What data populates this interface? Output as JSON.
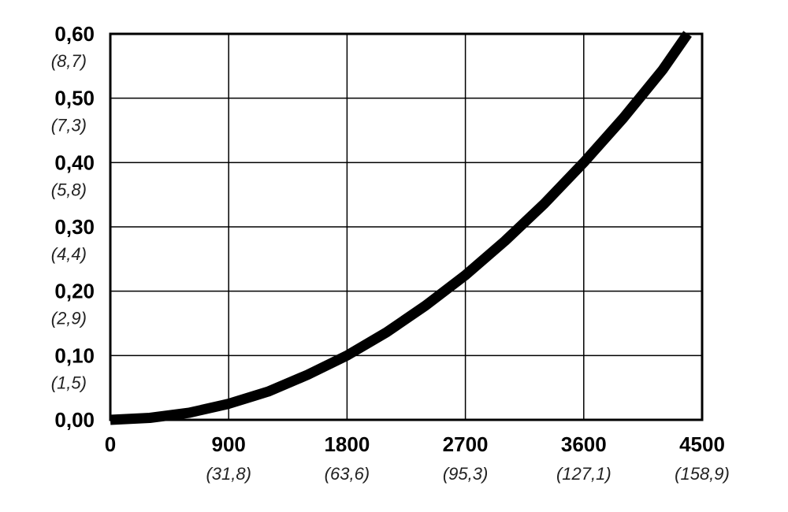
{
  "chart_data": {
    "type": "line",
    "title": "",
    "xlabel": "",
    "ylabel": "",
    "xlim": [
      0,
      4500
    ],
    "ylim": [
      0,
      0.6
    ],
    "grid": true,
    "x_ticks": [
      {
        "value": 0,
        "label": "0",
        "sublabel": ""
      },
      {
        "value": 900,
        "label": "900",
        "sublabel": "(31,8)"
      },
      {
        "value": 1800,
        "label": "1800",
        "sublabel": "(63,6)"
      },
      {
        "value": 2700,
        "label": "2700",
        "sublabel": "(95,3)"
      },
      {
        "value": 3600,
        "label": "3600",
        "sublabel": "(127,1)"
      },
      {
        "value": 4500,
        "label": "4500",
        "sublabel": "(158,9)"
      }
    ],
    "y_ticks": [
      {
        "value": 0.0,
        "label": "0,00",
        "sublabel": ""
      },
      {
        "value": 0.1,
        "label": "0,10",
        "sublabel": "(1,5)"
      },
      {
        "value": 0.2,
        "label": "0,20",
        "sublabel": "(2,9)"
      },
      {
        "value": 0.3,
        "label": "0,30",
        "sublabel": "(4,4)"
      },
      {
        "value": 0.4,
        "label": "0,40",
        "sublabel": "(5,8)"
      },
      {
        "value": 0.5,
        "label": "0,50",
        "sublabel": "(7,3)"
      },
      {
        "value": 0.6,
        "label": "0,60",
        "sublabel": "(8,7)"
      }
    ],
    "series": [
      {
        "x": [
          0,
          300,
          600,
          900,
          1200,
          1500,
          1800,
          2100,
          2400,
          2700,
          3000,
          3300,
          3600,
          3900,
          4200,
          4390
        ],
        "y": [
          0.0,
          0.003,
          0.011,
          0.025,
          0.044,
          0.07,
          0.1,
          0.136,
          0.178,
          0.225,
          0.278,
          0.336,
          0.4,
          0.469,
          0.544,
          0.6
        ]
      }
    ],
    "line_color": "#000000"
  }
}
